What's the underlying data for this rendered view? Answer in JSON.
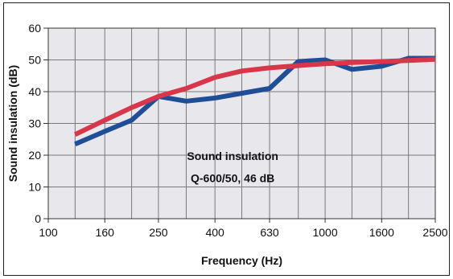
{
  "chart_data": {
    "type": "line",
    "title": "",
    "xlabel": "Frequency (Hz)",
    "ylabel": "Sound insulation (dB)",
    "x_scale": "log",
    "x_ticks": [
      100,
      125,
      160,
      200,
      250,
      315,
      400,
      500,
      630,
      800,
      1000,
      1250,
      1600,
      2000,
      2500
    ],
    "x_tick_labels": [
      {
        "value": 100,
        "label": "100"
      },
      {
        "value": 160,
        "label": "160"
      },
      {
        "value": 250,
        "label": "250"
      },
      {
        "value": 400,
        "label": "400"
      },
      {
        "value": 630,
        "label": "630"
      },
      {
        "value": 1000,
        "label": "1000"
      },
      {
        "value": 1600,
        "label": "1600"
      },
      {
        "value": 2500,
        "label": "2500"
      }
    ],
    "xlim": [
      100,
      2500
    ],
    "ylim": [
      0,
      60
    ],
    "y_ticks": [
      0,
      10,
      20,
      30,
      40,
      50,
      60
    ],
    "y_tick_labels": [
      "0",
      "10",
      "20",
      "30",
      "40",
      "50",
      "60"
    ],
    "grid": true,
    "plot_background": "#e8e8ec",
    "grid_color": "#7a7a7a",
    "annotations": [
      "Sound insulation",
      "Q-600/50, 46 dB"
    ],
    "series": [
      {
        "color": "#1f4e96",
        "x": [
          125,
          160,
          200,
          250,
          315,
          400,
          500,
          630,
          800,
          1000,
          1250,
          1600,
          2000,
          2500
        ],
        "values": [
          23.5,
          27.5,
          31,
          38.5,
          37,
          38,
          39.5,
          41,
          49.5,
          50,
          47,
          48,
          50.5,
          50.5
        ]
      },
      {
        "color": "#d8364a",
        "x": [
          125,
          160,
          200,
          250,
          315,
          400,
          500,
          630,
          800,
          1000,
          1250,
          1600,
          2000,
          2500
        ],
        "values": [
          26.5,
          31,
          35,
          38.5,
          41,
          44.5,
          46.5,
          47.5,
          48.2,
          48.8,
          49.2,
          49.5,
          49.8,
          50.2
        ]
      }
    ]
  }
}
